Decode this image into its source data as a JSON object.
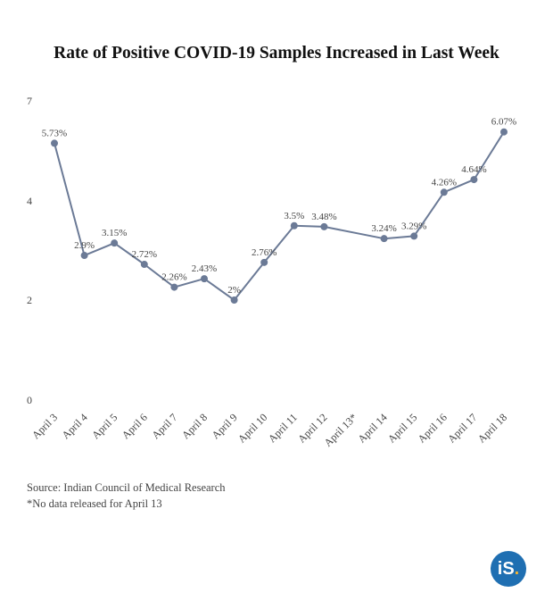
{
  "chart_data": {
    "type": "line",
    "title": "Rate of Positive COVID-19 Samples Increased in Last Week",
    "categories": [
      "April 3",
      "April 4",
      "April 5",
      "April 6",
      "April 7",
      "April 8",
      "April 9",
      "April 10",
      "April 11",
      "April 12",
      "April 13*",
      "April 14",
      "April 15",
      "April 16",
      "April 17",
      "April 18"
    ],
    "series": [
      {
        "values": [
          5.73,
          2.9,
          3.15,
          2.72,
          2.26,
          2.43,
          2.0,
          2.76,
          3.5,
          3.48,
          null,
          3.24,
          3.29,
          4.26,
          4.64,
          6.07
        ],
        "data_labels": [
          "5.73%",
          "2.9%",
          "3.15%",
          "2.72%",
          "2.26%",
          "2.43%",
          "2%",
          "2.76%",
          "3.5%",
          "3.48%",
          "",
          "3.24%",
          "3.29%",
          "4.26%",
          "4.64%",
          "6.07%"
        ]
      }
    ],
    "y_ticks": [
      "0",
      "2",
      "4",
      "7"
    ],
    "xlabel": "",
    "ylabel": "",
    "grid": false,
    "colors": {
      "line": "#6b7a96",
      "marker": "#6b7a96"
    }
  },
  "notes": {
    "source": "Source: Indian Council of Medical Research",
    "footnote": "*No data released for April 13"
  },
  "logo": {
    "text": "iS",
    "dot": "."
  }
}
